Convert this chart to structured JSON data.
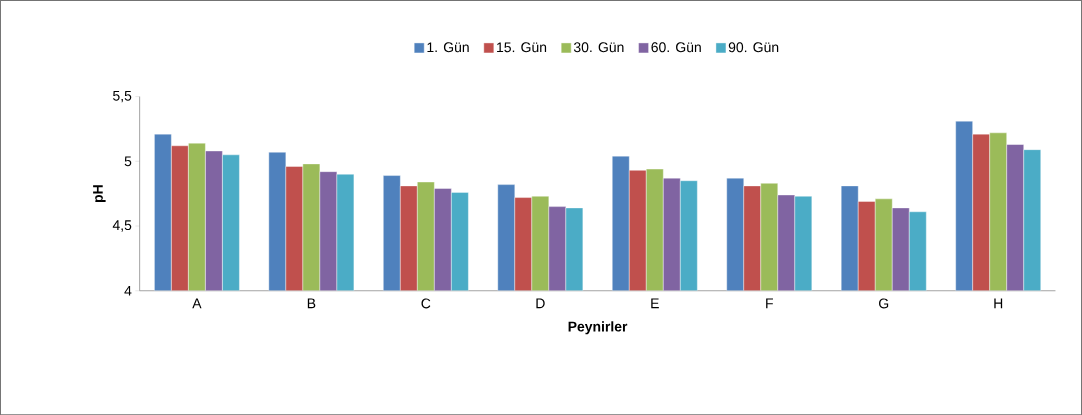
{
  "chart_data": {
    "type": "bar",
    "xlabel": "Peynirler",
    "ylabel": "pH",
    "categories": [
      "A",
      "B",
      "C",
      "D",
      "E",
      "F",
      "G",
      "H"
    ],
    "ylim": [
      4,
      5.5
    ],
    "yticks": [
      4,
      {
        "value": 4.5,
        "label": "4,5"
      },
      5,
      {
        "value": 5.5,
        "label": "5,5"
      }
    ],
    "legend": "top",
    "series": [
      {
        "name": "1. Gün",
        "color": "#4f81bd",
        "values": [
          5.21,
          5.07,
          4.89,
          4.82,
          5.04,
          4.87,
          4.81,
          5.31
        ]
      },
      {
        "name": "15. Gün",
        "color": "#c0504d",
        "values": [
          5.12,
          4.96,
          4.81,
          4.72,
          4.93,
          4.81,
          4.69,
          5.21
        ]
      },
      {
        "name": "30. Gün",
        "color": "#9bbb59",
        "values": [
          5.14,
          4.98,
          4.84,
          4.73,
          4.94,
          4.83,
          4.71,
          5.22
        ]
      },
      {
        "name": "60. Gün",
        "color": "#8064a2",
        "values": [
          5.08,
          4.92,
          4.79,
          4.65,
          4.87,
          4.74,
          4.64,
          5.13
        ]
      },
      {
        "name": "90. Gün",
        "color": "#4bacc6",
        "values": [
          5.05,
          4.9,
          4.76,
          4.64,
          4.85,
          4.73,
          4.61,
          5.09
        ]
      }
    ]
  }
}
